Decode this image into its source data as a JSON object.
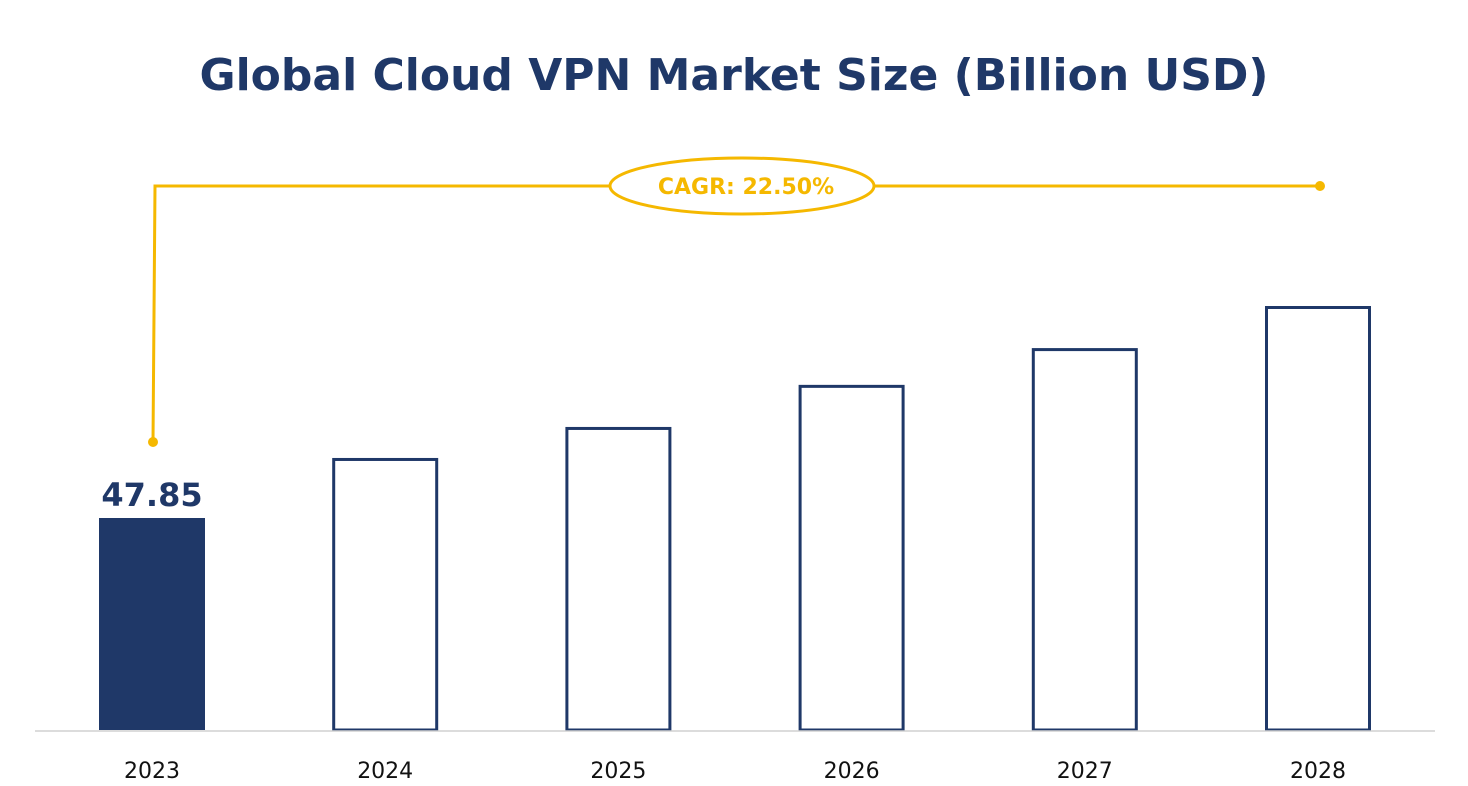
{
  "chart_data": {
    "type": "bar",
    "title": "Global Cloud VPN Market Size (Billion USD)",
    "categories": [
      "2023",
      "2024",
      "2025",
      "2026",
      "2027",
      "2028"
    ],
    "values": [
      47.85,
      61.4,
      68.4,
      77.9,
      86.2,
      95.7
    ],
    "data_labels": [
      "47.85",
      "",
      "",
      "",
      "",
      ""
    ],
    "highlighted_category": "2023",
    "annotation": "CAGR: 22.50%",
    "xlabel": "",
    "ylabel": "",
    "ylim": [
      0,
      100
    ],
    "grid": false,
    "colors": {
      "filled_bar": "#1f3868",
      "outline_bar": "#1f3868",
      "annotation": "#f5b800",
      "axis": "#d0d0d0"
    }
  }
}
